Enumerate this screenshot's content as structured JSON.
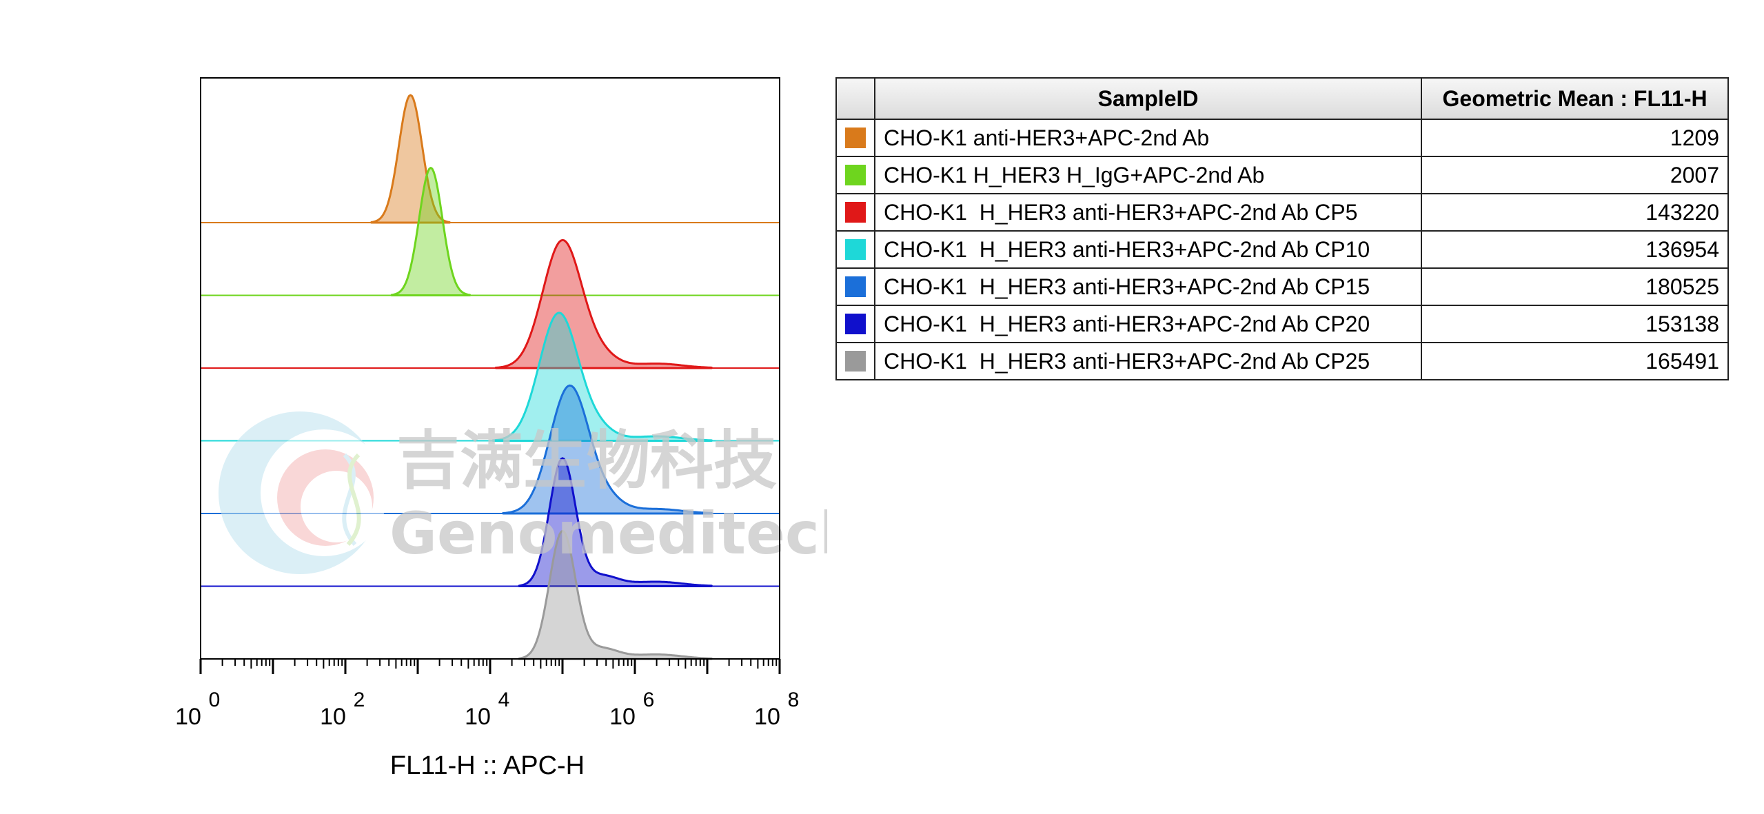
{
  "chart_data": {
    "type": "area",
    "xlabel": "FL11-H :: APC-H",
    "x_scale": "log",
    "x_ticks": [
      {
        "base": "10",
        "exp": "0",
        "value": 1
      },
      {
        "base": "10",
        "exp": "2",
        "value": 100
      },
      {
        "base": "10",
        "exp": "4",
        "value": 10000
      },
      {
        "base": "10",
        "exp": "6",
        "value": 1000000
      },
      {
        "base": "10",
        "exp": "8",
        "value": 100000000
      }
    ],
    "xlim": [
      1,
      100000000
    ],
    "layout": "offset histograms",
    "series": [
      {
        "name": "CHO-K1 anti-HER3+APC-2nd Ab",
        "color": "#D97A1B",
        "peak_log10": 2.9,
        "width": 0.16
      },
      {
        "name": "CHO-K1 H_HER3 H_IgG+APC-2nd Ab",
        "color": "#6ED51E",
        "peak_log10": 3.18,
        "width": 0.16
      },
      {
        "name": "CHO-K1  H_HER3 anti-HER3+APC-2nd Ab CP5",
        "color": "#E01818",
        "peak_log10": 5.0,
        "width": 0.27
      },
      {
        "name": "CHO-K1  H_HER3 anti-HER3+APC-2nd Ab CP10",
        "color": "#1ED8D8",
        "peak_log10": 4.95,
        "width": 0.27
      },
      {
        "name": "CHO-K1  H_HER3 anti-HER3+APC-2nd Ab CP15",
        "color": "#1B6FD9",
        "peak_log10": 5.1,
        "width": 0.27
      },
      {
        "name": "CHO-K1  H_HER3 anti-HER3+APC-2nd Ab CP20",
        "color": "#1010CC",
        "peak_log10": 5.0,
        "width": 0.18
      },
      {
        "name": "CHO-K1  H_HER3 anti-HER3+APC-2nd Ab CP25",
        "color": "#9A9A9A",
        "peak_log10": 5.0,
        "width": 0.18
      }
    ]
  },
  "legend": {
    "header_sample": "SampleID",
    "header_value": "Geometric Mean : FL11-H",
    "rows": [
      {
        "color": "#D97A1B",
        "sample": "CHO-K1 anti-HER3+APC-2nd Ab",
        "value": "1209"
      },
      {
        "color": "#6ED51E",
        "sample": "CHO-K1 H_HER3 H_IgG+APC-2nd Ab",
        "value": "2007"
      },
      {
        "color": "#E01818",
        "sample": "CHO-K1  H_HER3 anti-HER3+APC-2nd Ab CP5",
        "value": "143220"
      },
      {
        "color": "#1ED8D8",
        "sample": "CHO-K1  H_HER3 anti-HER3+APC-2nd Ab CP10",
        "value": "136954"
      },
      {
        "color": "#1B6FD9",
        "sample": "CHO-K1  H_HER3 anti-HER3+APC-2nd Ab CP15",
        "value": "180525"
      },
      {
        "color": "#1010CC",
        "sample": "CHO-K1  H_HER3 anti-HER3+APC-2nd Ab CP20",
        "value": "153138"
      },
      {
        "color": "#9A9A9A",
        "sample": "CHO-K1  H_HER3 anti-HER3+APC-2nd Ab CP25",
        "value": "165491"
      }
    ]
  },
  "watermark": {
    "text_cn": "吉满生物科技",
    "text_en": "Genomeditech"
  }
}
